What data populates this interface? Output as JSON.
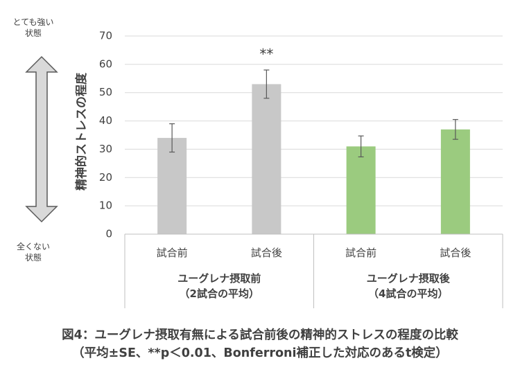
{
  "chart_data": {
    "type": "bar",
    "ylabel": "精神的ストレスの程度",
    "ylim": [
      0,
      70
    ],
    "yticks": [
      0,
      10,
      20,
      30,
      40,
      50,
      60,
      70
    ],
    "categories": [
      "試合前",
      "試合後",
      "試合前",
      "試合後"
    ],
    "values": [
      34,
      53,
      31,
      37
    ],
    "errors": [
      5,
      5,
      3.7,
      3.5
    ],
    "colors": [
      "#c8c8c8",
      "#c8c8c8",
      "#9bcb7f",
      "#9bcb7f"
    ],
    "significance": [
      {
        "index": 1,
        "label": "**"
      }
    ],
    "groups": [
      {
        "line1": "ユーグレナ摂取前",
        "line2": "（2試合の平均）",
        "categories": [
          0,
          1
        ]
      },
      {
        "line1": "ユーグレナ摂取後",
        "line2": "（4試合の平均）",
        "categories": [
          2,
          3
        ]
      }
    ],
    "grid": true
  },
  "scale_labels": {
    "top": [
      "とても強い",
      "状態"
    ],
    "bottom": [
      "全くない",
      "状態"
    ]
  },
  "caption": {
    "line1": "図4：ユーグレナ摂取有無による試合前後の精神的ストレスの程度の比較",
    "line2": "（平均±SE、**p＜0.01、Bonferroni補正した対応のあるt検定）"
  },
  "colors": {
    "arrow_fill": "#d9d9d9",
    "arrow_stroke": "#595959",
    "gridline": "#d9d9d9",
    "text": "#404040"
  }
}
